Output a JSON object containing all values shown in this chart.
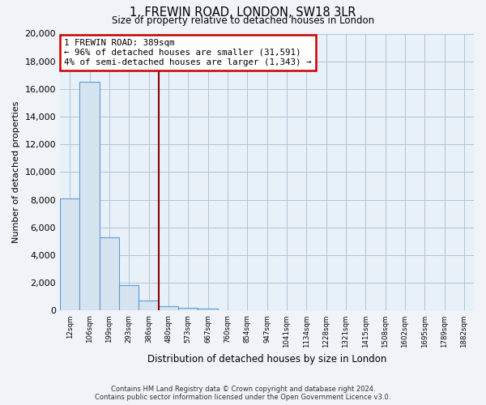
{
  "title": "1, FREWIN ROAD, LONDON, SW18 3LR",
  "subtitle": "Size of property relative to detached houses in London",
  "xlabel": "Distribution of detached houses by size in London",
  "ylabel": "Number of detached properties",
  "bar_labels": [
    "12sqm",
    "106sqm",
    "199sqm",
    "293sqm",
    "386sqm",
    "480sqm",
    "573sqm",
    "667sqm",
    "760sqm",
    "854sqm",
    "947sqm",
    "1041sqm",
    "1134sqm",
    "1228sqm",
    "1321sqm",
    "1415sqm",
    "1508sqm",
    "1602sqm",
    "1695sqm",
    "1789sqm",
    "1882sqm"
  ],
  "bar_values": [
    8100,
    16500,
    5300,
    1850,
    750,
    300,
    200,
    150,
    0,
    0,
    0,
    0,
    0,
    0,
    0,
    0,
    0,
    0,
    0,
    0,
    0
  ],
  "bar_color": "#d6e4f0",
  "bar_edge_color": "#5b9bd5",
  "marker_line_index": 5,
  "ylim": [
    0,
    20000
  ],
  "yticks": [
    0,
    2000,
    4000,
    6000,
    8000,
    10000,
    12000,
    14000,
    16000,
    18000,
    20000
  ],
  "annotation_box_title": "1 FREWIN ROAD: 389sqm",
  "annotation_line1": "← 96% of detached houses are smaller (31,591)",
  "annotation_line2": "4% of semi-detached houses are larger (1,343) →",
  "marker_line_color": "#8b0000",
  "footnote1": "Contains HM Land Registry data © Crown copyright and database right 2024.",
  "footnote2": "Contains public sector information licensed under the Open Government Licence v3.0.",
  "background_color": "#f0f4f8",
  "plot_bg_color": "#e8f0f8",
  "grid_color": "#b0c4d8"
}
